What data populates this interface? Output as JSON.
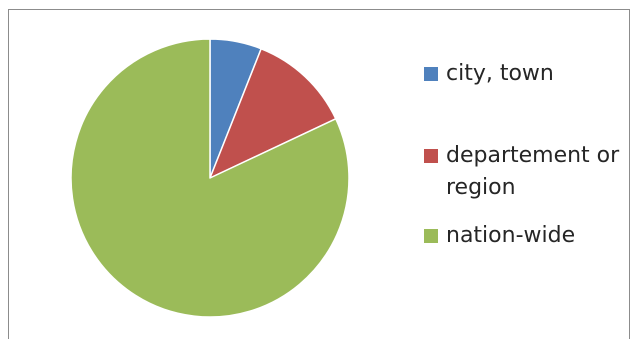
{
  "chart_data": {
    "type": "pie",
    "title": "",
    "categories": [
      "city, town",
      "departement or region",
      "nation-wide"
    ],
    "values": [
      6,
      12,
      82
    ],
    "colors": [
      "#4f81bd",
      "#c0504d",
      "#9bbb59"
    ],
    "start_angle_deg": 0,
    "direction": "clockwise",
    "legend": {
      "placement": "right",
      "entries": [
        {
          "label": "city, town",
          "color": "#4f81bd"
        },
        {
          "label": "departement or region",
          "color": "#c0504d"
        },
        {
          "label": "nation-wide",
          "color": "#9bbb59"
        }
      ]
    }
  }
}
